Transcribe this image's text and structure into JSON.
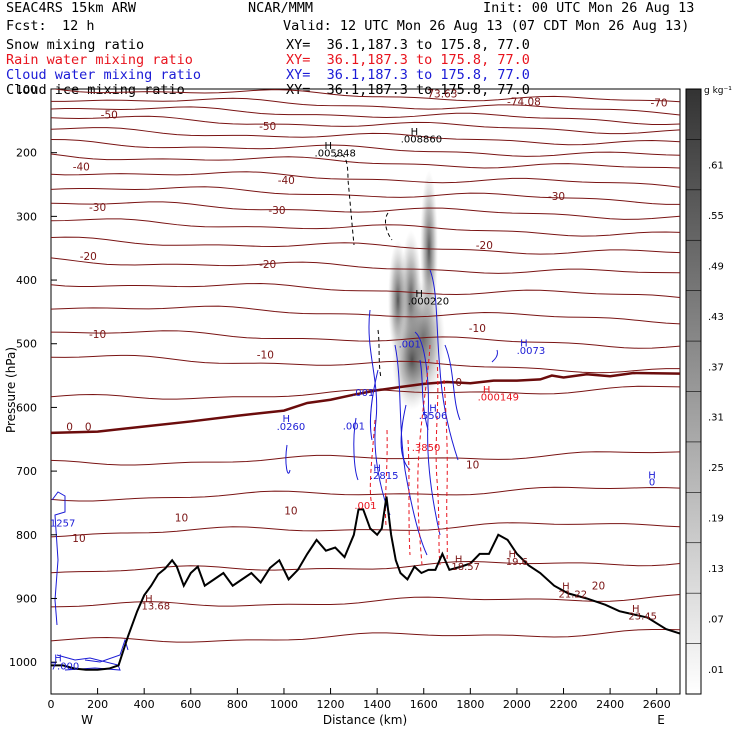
{
  "header": {
    "model": "SEAC4RS 15km ARW",
    "org": "NCAR/MMM",
    "init": "Init: 00 UTC Mon 26 Aug 13",
    "fcst_label": "Fcst:",
    "fcst_value": "12 h",
    "valid": "Valid: 12 UTC Mon 26 Aug 13 (07 CDT Mon 26 Aug 13)",
    "fields": [
      {
        "name": "Snow mixing ratio",
        "xy": "XY=  36.1,187.3 to 175.8, 77.0",
        "color": "#000000"
      },
      {
        "name": "Rain water mixing ratio",
        "xy": "XY=  36.1,187.3 to 175.8, 77.0",
        "color": "#e8141e"
      },
      {
        "name": "Cloud water mixing ratio",
        "xy": "XY=  36.1,187.3 to 175.8, 77.0",
        "color": "#1b1bd6"
      },
      {
        "name": "Cloud ice mixing ratio",
        "xy": "XY=  36.1,187.3 to 175.8, 77.0",
        "color": "#000000"
      }
    ]
  },
  "chart_data": {
    "type": "cross-section contour",
    "xlabel": "Distance (km)",
    "ylabel": "Pressure (hPa)",
    "xlim": [
      0,
      2700
    ],
    "ylim": [
      1050,
      100
    ],
    "x_ticks": [
      0,
      200,
      400,
      600,
      800,
      1000,
      1200,
      1400,
      1600,
      1800,
      2000,
      2200,
      2400,
      2600
    ],
    "y_ticks": [
      1000,
      900,
      800,
      700,
      600,
      500,
      400,
      300,
      200
    ],
    "y_top_label": "100",
    "left_end": "W",
    "right_end": "E",
    "colorbar": {
      "unit": "g kg⁻¹",
      "labels": [
        ".01",
        ".07",
        ".13",
        ".19",
        ".25",
        ".31",
        ".37",
        ".43",
        ".49",
        ".55",
        ".61"
      ]
    },
    "temperature_labels": [
      {
        "text": "-70",
        "x": 2610,
        "p": 121
      },
      {
        "text": "-74.08",
        "x": 2030,
        "p": 120
      },
      {
        "text": "73.63",
        "x": 1680,
        "p": 107
      },
      {
        "text": "-50",
        "x": 250,
        "p": 140
      },
      {
        "text": "-50",
        "x": 930,
        "p": 158
      },
      {
        "text": "-40",
        "x": 130,
        "p": 222
      },
      {
        "text": "-40",
        "x": 1010,
        "p": 243
      },
      {
        "text": "-30",
        "x": 2170,
        "p": 268
      },
      {
        "text": "-30",
        "x": 200,
        "p": 285
      },
      {
        "text": "-30",
        "x": 970,
        "p": 290
      },
      {
        "text": "-20",
        "x": 1860,
        "p": 345
      },
      {
        "text": "-20",
        "x": 160,
        "p": 362
      },
      {
        "text": "-20",
        "x": 930,
        "p": 375
      },
      {
        "text": "-10",
        "x": 1830,
        "p": 475
      },
      {
        "text": "-10",
        "x": 200,
        "p": 485
      },
      {
        "text": "-10",
        "x": 920,
        "p": 517
      },
      {
        "text": "0",
        "x": 1750,
        "p": 560
      },
      {
        "text": "0",
        "x": 80,
        "p": 630
      },
      {
        "text": "0",
        "x": 160,
        "p": 630
      },
      {
        "text": "10",
        "x": 1810,
        "p": 690
      },
      {
        "text": "10",
        "x": 1030,
        "p": 762
      },
      {
        "text": "10",
        "x": 560,
        "p": 773
      },
      {
        "text": "10",
        "x": 120,
        "p": 805
      },
      {
        "text": "20",
        "x": 2350,
        "p": 880
      }
    ],
    "annotations": [
      {
        "text": "H",
        "x": 1190,
        "p": 188,
        "color": "black"
      },
      {
        "text": ".005848",
        "x": 1220,
        "p": 200,
        "color": "black"
      },
      {
        "text": "H",
        "x": 1560,
        "p": 166,
        "color": "black"
      },
      {
        "text": ".008860",
        "x": 1590,
        "p": 178,
        "color": "black"
      },
      {
        "text": "H",
        "x": 1580,
        "p": 420,
        "color": "black"
      },
      {
        "text": ".000220",
        "x": 1620,
        "p": 432,
        "color": "black"
      },
      {
        "text": "H",
        "x": 2030,
        "p": 498,
        "color": "blue"
      },
      {
        "text": ".0073",
        "x": 2060,
        "p": 510,
        "color": "blue"
      },
      {
        "text": ".001",
        "x": 1540,
        "p": 500,
        "color": "blue"
      },
      {
        "text": ".001",
        "x": 1340,
        "p": 576,
        "color": "blue"
      },
      {
        "text": ".001",
        "x": 1300,
        "p": 628,
        "color": "blue"
      },
      {
        "text": "H",
        "x": 1010,
        "p": 617,
        "color": "blue"
      },
      {
        "text": ".0260",
        "x": 1030,
        "p": 629,
        "color": "blue"
      },
      {
        "text": "H",
        "x": 1870,
        "p": 571,
        "color": "red"
      },
      {
        "text": ".000149",
        "x": 1920,
        "p": 583,
        "color": "red"
      },
      {
        "text": "H",
        "x": 1640,
        "p": 600,
        "color": "blue"
      },
      {
        "text": ".5506",
        "x": 1640,
        "p": 612,
        "color": "blue"
      },
      {
        "text": ".3850",
        "x": 1610,
        "p": 662,
        "color": "red"
      },
      {
        "text": "H",
        "x": 1400,
        "p": 694,
        "color": "blue"
      },
      {
        "text": ".2815",
        "x": 1430,
        "p": 706,
        "color": "blue"
      },
      {
        "text": ".001",
        "x": 1350,
        "p": 753,
        "color": "red"
      },
      {
        "text": "H",
        "x": 2580,
        "p": 705,
        "color": "blue"
      },
      {
        "text": "0",
        "x": 2580,
        "p": 716,
        "color": "blue"
      },
      {
        "text": "1257",
        "x": 50,
        "p": 781,
        "color": "blue"
      },
      {
        "text": "H",
        "x": 1750,
        "p": 837,
        "color": "darkred"
      },
      {
        "text": "18.57",
        "x": 1780,
        "p": 849,
        "color": "darkred"
      },
      {
        "text": "H",
        "x": 1980,
        "p": 829,
        "color": "darkred"
      },
      {
        "text": "19.6",
        "x": 2000,
        "p": 841,
        "color": "darkred"
      },
      {
        "text": "H",
        "x": 2210,
        "p": 880,
        "color": "darkred"
      },
      {
        "text": "21.22",
        "x": 2240,
        "p": 892,
        "color": "darkred"
      },
      {
        "text": "H",
        "x": 420,
        "p": 899,
        "color": "darkred"
      },
      {
        "text": "13.68",
        "x": 450,
        "p": 911,
        "color": "darkred"
      },
      {
        "text": "H",
        "x": 2510,
        "p": 915,
        "color": "darkred"
      },
      {
        "text": "23.45",
        "x": 2540,
        "p": 927,
        "color": "darkred"
      },
      {
        "text": "H",
        "x": 30,
        "p": 993,
        "color": "blue"
      },
      {
        "text": "7.000",
        "x": 60,
        "p": 1005,
        "color": "blue"
      }
    ],
    "terrain": [
      [
        0,
        1005
      ],
      [
        50,
        1005
      ],
      [
        100,
        1010
      ],
      [
        150,
        1012
      ],
      [
        200,
        1012
      ],
      [
        250,
        1010
      ],
      [
        290,
        1005
      ],
      [
        330,
        960
      ],
      [
        370,
        920
      ],
      [
        400,
        895
      ],
      [
        430,
        880
      ],
      [
        460,
        862
      ],
      [
        490,
        853
      ],
      [
        520,
        840
      ],
      [
        540,
        850
      ],
      [
        570,
        880
      ],
      [
        600,
        860
      ],
      [
        630,
        850
      ],
      [
        660,
        880
      ],
      [
        700,
        870
      ],
      [
        740,
        860
      ],
      [
        780,
        880
      ],
      [
        820,
        870
      ],
      [
        860,
        860
      ],
      [
        900,
        875
      ],
      [
        940,
        852
      ],
      [
        980,
        840
      ],
      [
        1020,
        870
      ],
      [
        1060,
        855
      ],
      [
        1100,
        830
      ],
      [
        1140,
        808
      ],
      [
        1180,
        825
      ],
      [
        1220,
        820
      ],
      [
        1260,
        835
      ],
      [
        1300,
        800
      ],
      [
        1320,
        760
      ],
      [
        1340,
        760
      ],
      [
        1370,
        790
      ],
      [
        1400,
        800
      ],
      [
        1420,
        790
      ],
      [
        1440,
        740
      ],
      [
        1460,
        800
      ],
      [
        1480,
        840
      ],
      [
        1500,
        860
      ],
      [
        1530,
        870
      ],
      [
        1560,
        850
      ],
      [
        1590,
        860
      ],
      [
        1620,
        855
      ],
      [
        1650,
        855
      ],
      [
        1680,
        830
      ],
      [
        1710,
        855
      ],
      [
        1760,
        850
      ],
      [
        1800,
        845
      ],
      [
        1840,
        830
      ],
      [
        1880,
        830
      ],
      [
        1920,
        800
      ],
      [
        1960,
        808
      ],
      [
        2000,
        830
      ],
      [
        2050,
        848
      ],
      [
        2100,
        860
      ],
      [
        2160,
        880
      ],
      [
        2220,
        892
      ],
      [
        2300,
        900
      ],
      [
        2380,
        910
      ],
      [
        2440,
        920
      ],
      [
        2500,
        925
      ],
      [
        2560,
        930
      ],
      [
        2640,
        948
      ],
      [
        2700,
        955
      ]
    ],
    "freezing_level": [
      [
        0,
        640
      ],
      [
        200,
        638
      ],
      [
        400,
        630
      ],
      [
        600,
        622
      ],
      [
        800,
        613
      ],
      [
        1000,
        605
      ],
      [
        1100,
        593
      ],
      [
        1200,
        588
      ],
      [
        1300,
        580
      ],
      [
        1400,
        573
      ],
      [
        1500,
        568
      ],
      [
        1600,
        563
      ],
      [
        1700,
        560
      ],
      [
        1800,
        562
      ],
      [
        1900,
        558
      ],
      [
        2000,
        558
      ],
      [
        2100,
        556
      ],
      [
        2150,
        550
      ],
      [
        2200,
        553
      ],
      [
        2300,
        548
      ],
      [
        2400,
        551
      ],
      [
        2500,
        546
      ],
      [
        2700,
        547
      ]
    ],
    "isotherm_ys": [
      110,
      125,
      140,
      156,
      175,
      195,
      215,
      240,
      265,
      290,
      318,
      348,
      380,
      415,
      452,
      492,
      532,
      578,
      680,
      735,
      790,
      850,
      905,
      960
    ]
  }
}
